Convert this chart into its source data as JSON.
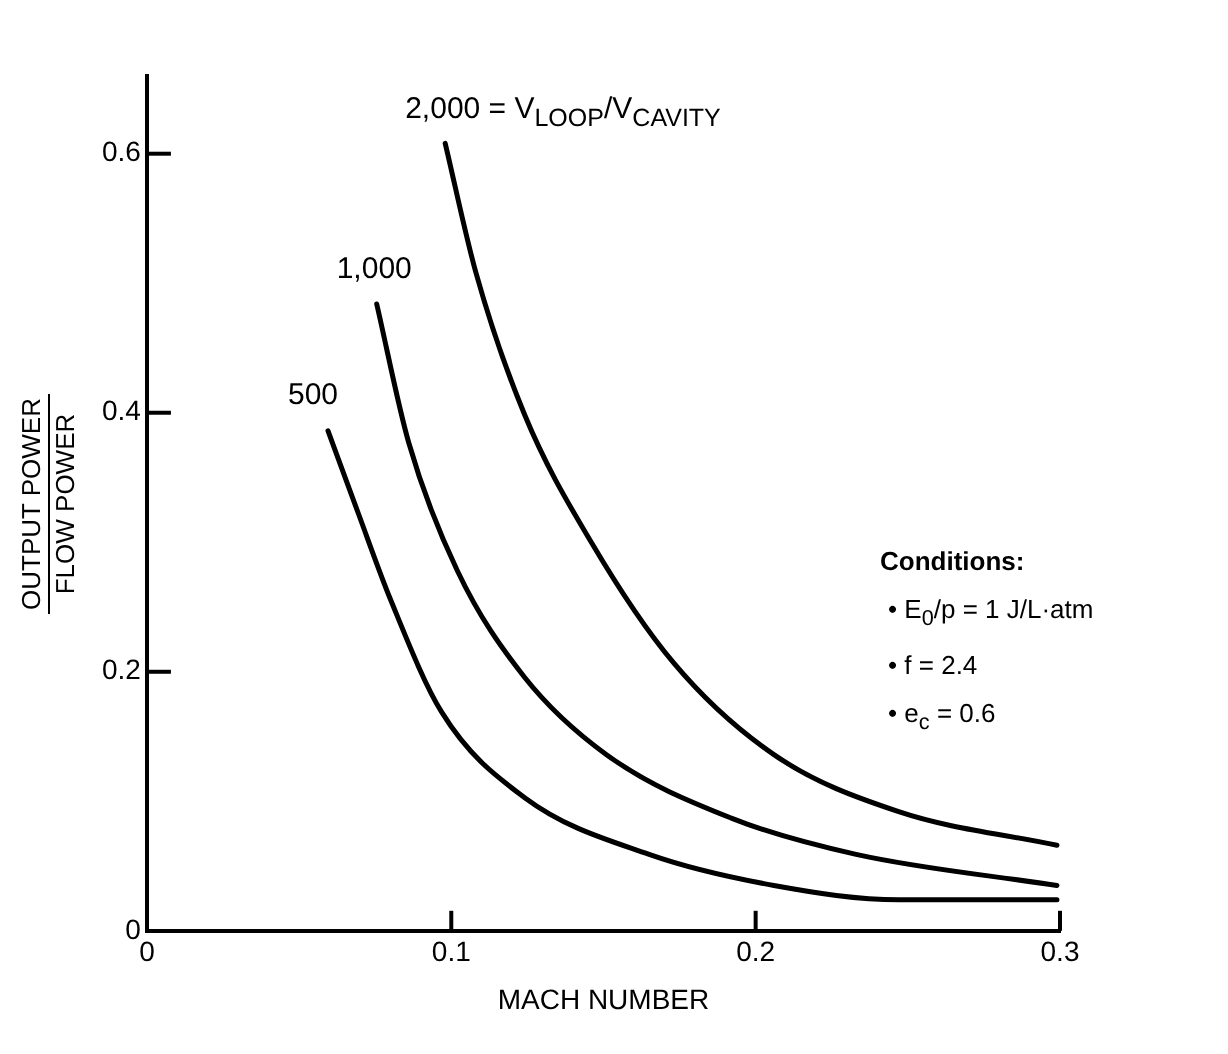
{
  "chart_data": {
    "type": "line",
    "xlabel": "MACH NUMBER",
    "ylabel": "OUTPUT POWER\nFLOW POWER",
    "xlim": [
      0,
      0.3
    ],
    "xticks": [
      0,
      0.1,
      0.2,
      0.3
    ],
    "ylim": [
      0,
      0.66
    ],
    "yticks": [
      0,
      0.2,
      0.4,
      0.6
    ],
    "legend": false,
    "marker": "none",
    "line_style": "solid",
    "series": [
      {
        "name": "500",
        "color": "#000000",
        "x": [
          0.0595,
          0.0695,
          0.08,
          0.0968,
          0.124,
          0.165,
          0.206,
          0.247,
          0.299
        ],
        "values": [
          0.386,
          0.322,
          0.256,
          0.169,
          0.103,
          0.059,
          0.035,
          0.024,
          0.024
        ]
      },
      {
        "name": "1,000",
        "color": "#000000",
        "x": [
          0.0755,
          0.086,
          0.102,
          0.124,
          0.151,
          0.192,
          0.233,
          0.299
        ],
        "values": [
          0.484,
          0.377,
          0.278,
          0.196,
          0.136,
          0.087,
          0.059,
          0.035
        ]
      },
      {
        "name": "2,000 = V$_{LOOP}$/V$_{CAVITY}$",
        "color": "#000000",
        "x": [
          0.098,
          0.108,
          0.124,
          0.146,
          0.173,
          0.206,
          0.247,
          0.299
        ],
        "values": [
          0.608,
          0.509,
          0.399,
          0.3,
          0.207,
          0.136,
          0.092,
          0.066
        ]
      }
    ],
    "annotations": [
      "Conditions:",
      "• E$_{0}$/p = 1 J/L·atm",
      "• f = 2.4",
      "• e$_{c}$ = 0.6"
    ]
  }
}
